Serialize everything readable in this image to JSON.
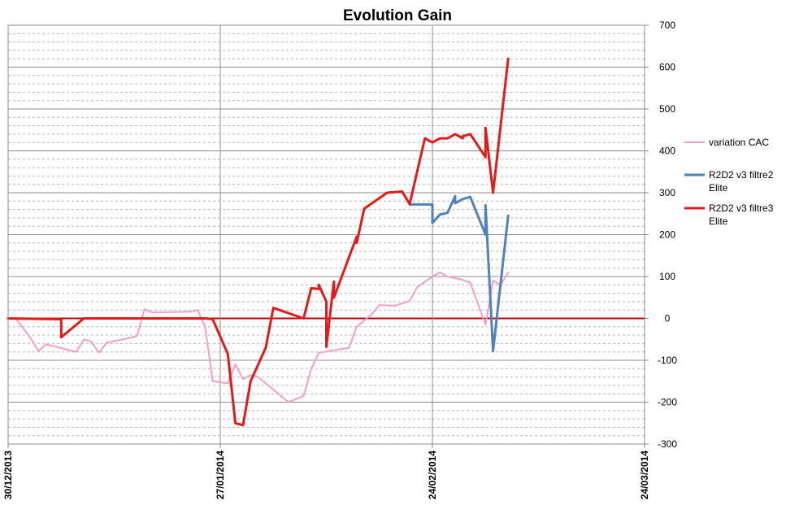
{
  "chart_data": {
    "type": "line",
    "title": "Evolution Gain",
    "xlabel": "",
    "ylabel": "",
    "ylim": [
      -300,
      700
    ],
    "y_ticks": [
      700,
      600,
      500,
      400,
      300,
      200,
      100,
      0,
      -100,
      -200,
      -300
    ],
    "y_tick_labels": [
      "700",
      "600",
      "500",
      "400",
      "300",
      "200",
      "100",
      "0",
      "-100",
      "-200",
      "-300"
    ],
    "xlim": [
      "2013-12-30",
      "2014-03-24"
    ],
    "x_ticks": [
      "2013-12-30",
      "2014-01-27",
      "2014-02-24",
      "2014-03-24"
    ],
    "x_tick_labels": [
      "30/12/2013",
      "27/01/2014",
      "24/02/2014",
      "24/03/2014"
    ],
    "grid": "major and minor horizontal, major vertical",
    "legend_position": "right",
    "colors": {
      "variation_cac": "#f59ec6",
      "filtre2": "#4f81bd",
      "filtre3": "#e41a1a",
      "zero_line": "#c0000a",
      "major_grid": "#8c8c8c",
      "minor_grid": "#b4b4b4"
    },
    "series": [
      {
        "name": "variation CAC",
        "color": "#f59ec6",
        "line_width": 2,
        "points": [
          [
            "2013-12-31",
            0
          ],
          [
            "2014-01-02",
            -48
          ],
          [
            "2014-01-03",
            -78
          ],
          [
            "2014-01-04",
            -62
          ],
          [
            "2014-01-08",
            -80
          ],
          [
            "2014-01-09",
            -50
          ],
          [
            "2014-01-10",
            -56
          ],
          [
            "2014-01-11",
            -82
          ],
          [
            "2014-01-12",
            -58
          ],
          [
            "2014-01-15",
            -47
          ],
          [
            "2014-01-16",
            -42
          ],
          [
            "2014-01-17",
            22
          ],
          [
            "2014-01-18",
            14
          ],
          [
            "2014-01-23",
            16
          ],
          [
            "2014-01-24",
            20
          ],
          [
            "2014-01-25",
            -20
          ],
          [
            "2014-01-26",
            -150
          ],
          [
            "2014-01-28",
            -155
          ],
          [
            "2014-01-29",
            -110
          ],
          [
            "2014-01-30",
            -145
          ],
          [
            "2014-01-31",
            -135
          ],
          [
            "2014-02-01",
            -140
          ],
          [
            "2014-02-05",
            -200
          ],
          [
            "2014-02-07",
            -185
          ],
          [
            "2014-02-08",
            -120
          ],
          [
            "2014-02-09",
            -82
          ],
          [
            "2014-02-13",
            -70
          ],
          [
            "2014-02-14",
            -20
          ],
          [
            "2014-02-16",
            10
          ],
          [
            "2014-02-17",
            32
          ],
          [
            "2014-02-19",
            30
          ],
          [
            "2014-02-21",
            42
          ],
          [
            "2014-02-22",
            75
          ],
          [
            "2014-02-24",
            100
          ],
          [
            "2014-02-25",
            110
          ],
          [
            "2014-02-26",
            100
          ],
          [
            "2014-02-28",
            92
          ],
          [
            "2014-03-01",
            85
          ],
          [
            "2014-03-03",
            -15
          ],
          [
            "2014-03-04",
            90
          ],
          [
            "2014-03-05",
            80
          ],
          [
            "2014-03-06",
            110
          ]
        ]
      },
      {
        "name": "R2D2 v3 filtre2 Elite",
        "color": "#4f81bd",
        "line_width": 3,
        "points": [
          [
            "2014-02-21",
            272
          ],
          [
            "2014-02-24",
            272
          ],
          [
            "2014-02-24",
            228
          ],
          [
            "2014-02-25",
            248
          ],
          [
            "2014-02-26",
            252
          ],
          [
            "2014-02-27",
            292
          ],
          [
            "2014-02-27",
            275
          ],
          [
            "2014-02-28",
            285
          ],
          [
            "2014-03-01",
            290
          ],
          [
            "2014-03-03",
            200
          ],
          [
            "2014-03-03",
            270
          ],
          [
            "2014-03-04",
            -78
          ],
          [
            "2014-03-06",
            245
          ]
        ]
      },
      {
        "name": "R2D2 v3 filtre3 Elite",
        "color": "#e41a1a",
        "line_width": 3,
        "points": [
          [
            "2013-12-30",
            0
          ],
          [
            "2014-01-06",
            -2
          ],
          [
            "2014-01-06",
            -45
          ],
          [
            "2014-01-07",
            -30
          ],
          [
            "2014-01-09",
            0
          ],
          [
            "2014-01-25",
            0
          ],
          [
            "2014-01-26",
            -2
          ],
          [
            "2014-01-28",
            -85
          ],
          [
            "2014-01-29",
            -250
          ],
          [
            "2014-01-30",
            -255
          ],
          [
            "2014-01-31",
            -150
          ],
          [
            "2014-02-02",
            -70
          ],
          [
            "2014-02-03",
            25
          ],
          [
            "2014-02-07",
            0
          ],
          [
            "2014-02-08",
            72
          ],
          [
            "2014-02-09",
            70
          ],
          [
            "2014-02-09",
            80
          ],
          [
            "2014-02-10",
            40
          ],
          [
            "2014-02-10",
            -68
          ],
          [
            "2014-02-11",
            88
          ],
          [
            "2014-02-11",
            50
          ],
          [
            "2014-02-14",
            195
          ],
          [
            "2014-02-14",
            180
          ],
          [
            "2014-02-15",
            262
          ],
          [
            "2014-02-18",
            300
          ],
          [
            "2014-02-20",
            303
          ],
          [
            "2014-02-21",
            273
          ],
          [
            "2014-02-23",
            430
          ],
          [
            "2014-02-24",
            420
          ],
          [
            "2014-02-25",
            430
          ],
          [
            "2014-02-26",
            430
          ],
          [
            "2014-02-27",
            440
          ],
          [
            "2014-02-28",
            430
          ],
          [
            "2014-02-28",
            435
          ],
          [
            "2014-03-01",
            440
          ],
          [
            "2014-03-03",
            385
          ],
          [
            "2014-03-03",
            455
          ],
          [
            "2014-03-04",
            300
          ],
          [
            "2014-03-06",
            620
          ]
        ]
      }
    ],
    "legend": [
      {
        "label_lines": [
          "variation CAC"
        ],
        "color": "#f59ec6"
      },
      {
        "label_lines": [
          "R2D2 v3 filtre2",
          "Elite"
        ],
        "color": "#4f81bd"
      },
      {
        "label_lines": [
          "R2D2 v3 filtre3",
          "Elite"
        ],
        "color": "#e41a1a"
      }
    ]
  }
}
